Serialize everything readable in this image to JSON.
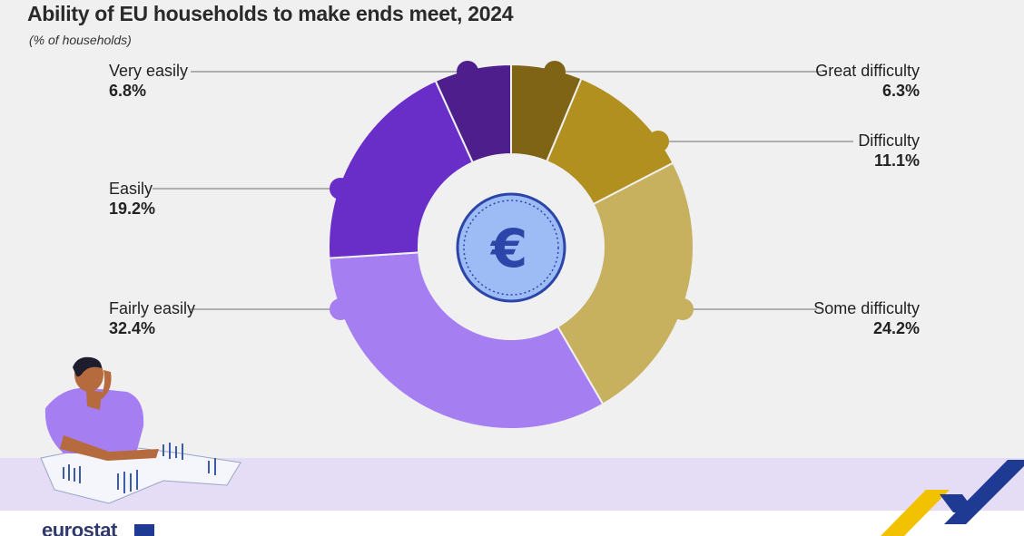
{
  "title": "Ability of EU households to make ends meet, 2024",
  "subtitle": "(% of households)",
  "logo_text": "eurostat",
  "center_icon": "euro-coin-icon",
  "colors": {
    "very_easily": "#4e1f8c",
    "easily": "#6a2ec8",
    "fairly_easily": "#a57ef2",
    "great_difficulty": "#7f6416",
    "difficulty": "#b1901f",
    "some_difficulty": "#c7b05e",
    "band": "#e5dcf5",
    "coin": "#9dbcf5",
    "coin_symbol": "#2b45a8"
  },
  "chart_data": {
    "type": "pie",
    "donut": true,
    "title": "Ability of EU households to make ends meet, 2024",
    "subtitle": "(% of households)",
    "slices": [
      {
        "name": "Great difficulty",
        "value": 6.3,
        "label": "6.3%",
        "color": "#7f6416"
      },
      {
        "name": "Difficulty",
        "value": 11.1,
        "label": "11.1%",
        "color": "#b1901f"
      },
      {
        "name": "Some difficulty",
        "value": 24.2,
        "label": "24.2%",
        "color": "#c7b05e"
      },
      {
        "name": "Fairly easily",
        "value": 32.4,
        "label": "32.4%",
        "color": "#a57ef2"
      },
      {
        "name": "Easily",
        "value": 19.2,
        "label": "19.2%",
        "color": "#6a2ec8"
      },
      {
        "name": "Very easily",
        "value": 6.8,
        "label": "6.8%",
        "color": "#4e1f8c"
      }
    ]
  }
}
